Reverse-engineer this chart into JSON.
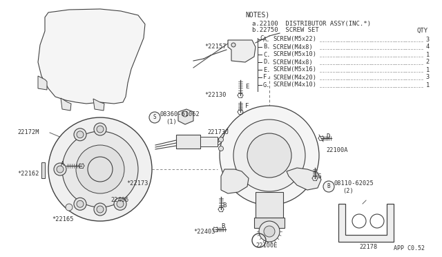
{
  "bg_color": "#ffffff",
  "line_color": "#404040",
  "text_color": "#303030",
  "notes_title": "NOTES)",
  "note_a": "a.22100  DISTRIBUTOR ASSY(INC.*)",
  "note_b": "b.22750  SCREW SET",
  "note_qty": "QTY",
  "screws": [
    {
      "label": "A.",
      "desc": "SCREW(M5x22)",
      "qty": "3"
    },
    {
      "label": "B.",
      "desc": "SCREW(M4x8) ",
      "qty": "4"
    },
    {
      "label": "C.",
      "desc": "SCREW(M5x10)",
      "qty": "1"
    },
    {
      "label": "D.",
      "desc": "SCREW(M4x8) ",
      "qty": "2"
    },
    {
      "label": "E.",
      "desc": "SCREW(M5x16)",
      "qty": "1"
    },
    {
      "label": "F.",
      "desc": "SCREW(M4x20)",
      "qty": "3"
    },
    {
      "label": "G.",
      "desc": "SCREW(M4x10)",
      "qty": "1"
    }
  ],
  "footer": "APP C0.52"
}
